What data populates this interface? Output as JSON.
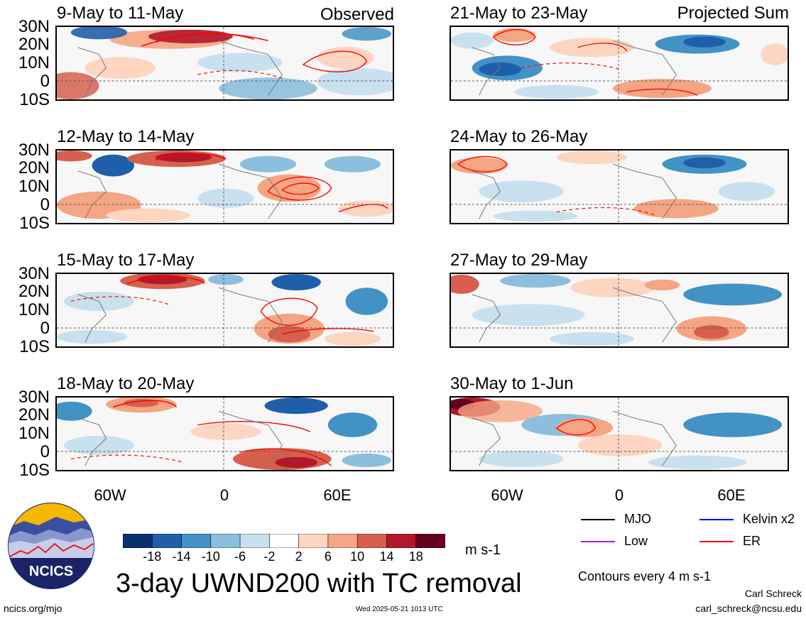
{
  "observed_label": "Observed",
  "projected_label": "Projected Sum",
  "panels_left": [
    {
      "title": "9-May to 11-May"
    },
    {
      "title": "12-May to 14-May"
    },
    {
      "title": "15-May to 17-May"
    },
    {
      "title": "18-May to 20-May"
    }
  ],
  "panels_right": [
    {
      "title": "21-May to 23-May"
    },
    {
      "title": "24-May to 26-May"
    },
    {
      "title": "27-May to 29-May"
    },
    {
      "title": "30-May to 1-Jun"
    }
  ],
  "lat_labels": [
    "30N",
    "20N",
    "10N",
    "0",
    "10S"
  ],
  "lon_labels": [
    "60W",
    "0",
    "60E"
  ],
  "colorbar": {
    "labels": [
      "-18",
      "-14",
      "-10",
      "-6",
      "-2",
      "2",
      "6",
      "10",
      "14",
      "18"
    ],
    "colors": [
      "#08306b",
      "#1f5faa",
      "#4292c6",
      "#8cbfdd",
      "#c9e0ef",
      "#ffffff",
      "#fdd5c0",
      "#f4a582",
      "#d6604d",
      "#b2182b",
      "#67001f"
    ],
    "units": "m s-1"
  },
  "main_title": "3-day UWND200 with TC removal",
  "logo_text": "NCICS",
  "legend": [
    {
      "label": "MJO",
      "color": "#000000"
    },
    {
      "label": "Kelvin x2",
      "color": "#0000ff"
    },
    {
      "label": "Low",
      "color": "#a020f0"
    },
    {
      "label": "ER",
      "color": "#ff0000"
    }
  ],
  "contour_note": "Contours every 4 m s-1",
  "author": "Carl Schreck",
  "email": "carl_schreck@ncsu.edu",
  "website": "ncics.org/mjo",
  "timestamp": "Wed 2025-05-21 1013 UTC"
}
